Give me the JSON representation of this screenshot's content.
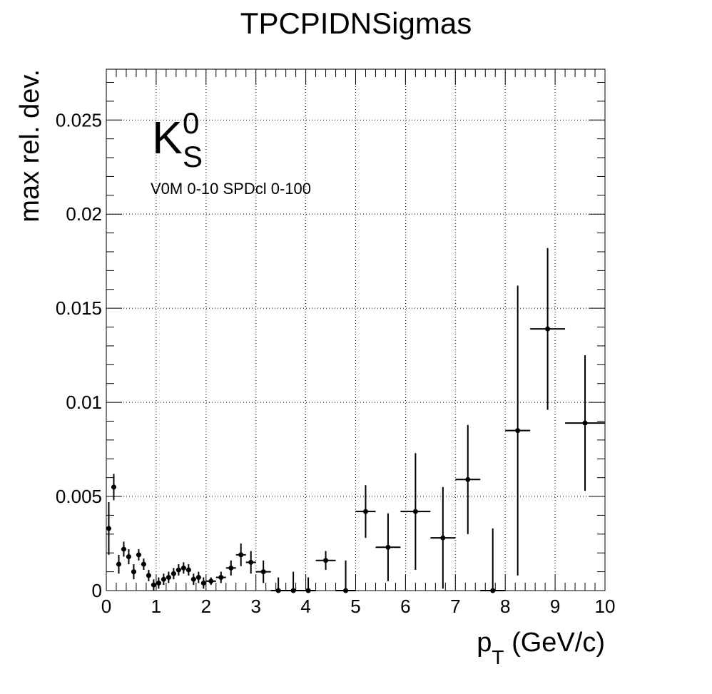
{
  "chart_data": {
    "type": "scatter",
    "title": "TPCPIDNSigmas",
    "xlabel": {
      "main": "p",
      "sub": "T",
      "rest": " (GeV/c)"
    },
    "ylabel": "max rel. dev.",
    "xlim": [
      0,
      10
    ],
    "ylim": [
      0,
      0.0277
    ],
    "grid": true,
    "x_ticks": [
      "0",
      "1",
      "2",
      "3",
      "4",
      "5",
      "6",
      "7",
      "8",
      "9",
      "10"
    ],
    "y_ticks": [
      {
        "v": 0,
        "label": "0"
      },
      {
        "v": 0.005,
        "label": "0.005"
      },
      {
        "v": 0.01,
        "label": "0.01"
      },
      {
        "v": 0.015,
        "label": "0.015"
      },
      {
        "v": 0.02,
        "label": "0.02"
      },
      {
        "v": 0.025,
        "label": "0.025"
      }
    ],
    "annotations": {
      "particle": "K",
      "particle_sup": "0",
      "particle_sub": "S",
      "selection": "V0M 0-10 SPDcl 0-100"
    },
    "points": [
      {
        "x": 0.05,
        "y": 0.0033,
        "xerr": 0.05,
        "yerr": 0.0014
      },
      {
        "x": 0.15,
        "y": 0.0055,
        "xerr": 0.05,
        "yerr": 0.0007
      },
      {
        "x": 0.25,
        "y": 0.0014,
        "xerr": 0.05,
        "yerr": 0.0005
      },
      {
        "x": 0.35,
        "y": 0.0022,
        "xerr": 0.05,
        "yerr": 0.0004
      },
      {
        "x": 0.45,
        "y": 0.0018,
        "xerr": 0.05,
        "yerr": 0.0004
      },
      {
        "x": 0.55,
        "y": 0.001,
        "xerr": 0.05,
        "yerr": 0.0004
      },
      {
        "x": 0.65,
        "y": 0.0019,
        "xerr": 0.05,
        "yerr": 0.0003
      },
      {
        "x": 0.75,
        "y": 0.0014,
        "xerr": 0.05,
        "yerr": 0.0003
      },
      {
        "x": 0.85,
        "y": 0.0008,
        "xerr": 0.05,
        "yerr": 0.0003
      },
      {
        "x": 0.95,
        "y": 0.0003,
        "xerr": 0.05,
        "yerr": 0.0003
      },
      {
        "x": 1.05,
        "y": 0.0004,
        "xerr": 0.05,
        "yerr": 0.0003
      },
      {
        "x": 1.15,
        "y": 0.0006,
        "xerr": 0.05,
        "yerr": 0.0003
      },
      {
        "x": 1.25,
        "y": 0.0007,
        "xerr": 0.05,
        "yerr": 0.0003
      },
      {
        "x": 1.35,
        "y": 0.0009,
        "xerr": 0.05,
        "yerr": 0.0003
      },
      {
        "x": 1.45,
        "y": 0.0011,
        "xerr": 0.05,
        "yerr": 0.0003
      },
      {
        "x": 1.55,
        "y": 0.0012,
        "xerr": 0.05,
        "yerr": 0.0003
      },
      {
        "x": 1.65,
        "y": 0.0011,
        "xerr": 0.05,
        "yerr": 0.0003
      },
      {
        "x": 1.75,
        "y": 0.0006,
        "xerr": 0.05,
        "yerr": 0.0003
      },
      {
        "x": 1.85,
        "y": 0.0007,
        "xerr": 0.05,
        "yerr": 0.0003
      },
      {
        "x": 1.95,
        "y": 0.0004,
        "xerr": 0.05,
        "yerr": 0.0003
      },
      {
        "x": 2.1,
        "y": 0.0005,
        "xerr": 0.1,
        "yerr": 0.0002
      },
      {
        "x": 2.3,
        "y": 0.0007,
        "xerr": 0.1,
        "yerr": 0.0003
      },
      {
        "x": 2.5,
        "y": 0.0012,
        "xerr": 0.1,
        "yerr": 0.0004
      },
      {
        "x": 2.7,
        "y": 0.0019,
        "xerr": 0.1,
        "yerr": 0.0006
      },
      {
        "x": 2.9,
        "y": 0.0015,
        "xerr": 0.1,
        "yerr": 0.0006
      },
      {
        "x": 3.15,
        "y": 0.001,
        "xerr": 0.15,
        "yerr": 0.0006
      },
      {
        "x": 3.45,
        "y": 0.0,
        "xerr": 0.15,
        "yerr": 0.0007
      },
      {
        "x": 3.75,
        "y": 0.0,
        "xerr": 0.15,
        "yerr": 0.001
      },
      {
        "x": 4.05,
        "y": 0.0,
        "xerr": 0.15,
        "yerr": 0.0007
      },
      {
        "x": 4.4,
        "y": 0.0016,
        "xerr": 0.2,
        "yerr": 0.0005
      },
      {
        "x": 4.8,
        "y": 0.0,
        "xerr": 0.2,
        "yerr": 0.0016
      },
      {
        "x": 5.2,
        "y": 0.0042,
        "xerr": 0.2,
        "yerr": 0.0014
      },
      {
        "x": 5.65,
        "y": 0.0023,
        "xerr": 0.25,
        "yerr": 0.0018
      },
      {
        "x": 6.2,
        "y": 0.0042,
        "xerr": 0.3,
        "yerr": 0.0031
      },
      {
        "x": 6.75,
        "y": 0.0028,
        "xerr": 0.25,
        "yerr": 0.0027
      },
      {
        "x": 7.25,
        "y": 0.0059,
        "xerr": 0.25,
        "yerr": 0.0029
      },
      {
        "x": 7.75,
        "y": 0.0,
        "xerr": 0.25,
        "yerr": 0.0033
      },
      {
        "x": 8.25,
        "y": 0.0085,
        "xerr": 0.25,
        "yerr": 0.0077
      },
      {
        "x": 8.85,
        "y": 0.0139,
        "xerr": 0.35,
        "yerr": 0.0043
      },
      {
        "x": 9.6,
        "y": 0.0089,
        "xerr": 0.4,
        "yerr": 0.0036
      }
    ]
  }
}
